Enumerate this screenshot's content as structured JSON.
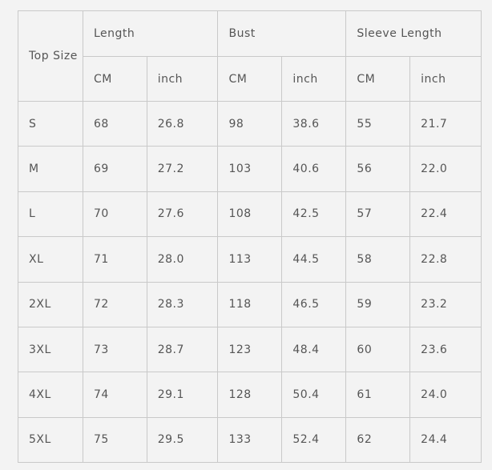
{
  "header": {
    "top_size": "Top Size",
    "groups": [
      "Length",
      "Bust",
      "Sleeve Length"
    ],
    "units": [
      "CM",
      "inch",
      "CM",
      "inch",
      "CM",
      "inch"
    ]
  },
  "rows": [
    [
      "S",
      "68",
      "26.8",
      "98",
      "38.6",
      "55",
      "21.7"
    ],
    [
      "M",
      "69",
      "27.2",
      "103",
      "40.6",
      "56",
      "22.0"
    ],
    [
      "L",
      "70",
      "27.6",
      "108",
      "42.5",
      "57",
      "22.4"
    ],
    [
      "XL",
      "71",
      "28.0",
      "113",
      "44.5",
      "58",
      "22.8"
    ],
    [
      "2XL",
      "72",
      "28.3",
      "118",
      "46.5",
      "59",
      "23.2"
    ],
    [
      "3XL",
      "73",
      "28.7",
      "123",
      "48.4",
      "60",
      "23.6"
    ],
    [
      "4XL",
      "74",
      "29.1",
      "128",
      "50.4",
      "61",
      "24.0"
    ],
    [
      "5XL",
      "75",
      "29.5",
      "133",
      "52.4",
      "62",
      "24.4"
    ]
  ]
}
